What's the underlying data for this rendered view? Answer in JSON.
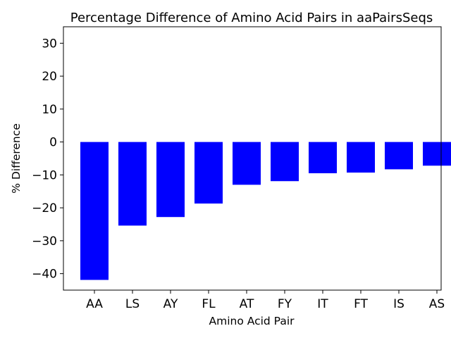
{
  "chart_data": {
    "type": "bar",
    "title": "Percentage Difference of Amino Acid Pairs in aaPairsSeqs",
    "xlabel": "Amino Acid Pair",
    "ylabel": "% Difference",
    "categories": [
      "AA",
      "LS",
      "AY",
      "FL",
      "AT",
      "FY",
      "IT",
      "FT",
      "IS",
      "AS"
    ],
    "values": [
      -41.9,
      -25.4,
      -22.8,
      -18.7,
      -13.0,
      -11.9,
      -9.5,
      -9.3,
      -8.3,
      -7.2
    ],
    "ylim": [
      -45,
      35
    ],
    "yticks": [
      -40,
      -30,
      -20,
      -10,
      0,
      10,
      20,
      30
    ],
    "ytick_labels": [
      "−40",
      "−30",
      "−20",
      "−10",
      "0",
      "10",
      "20",
      "30"
    ],
    "bar_color": "#0000ff",
    "grid": false,
    "legend": "none"
  }
}
